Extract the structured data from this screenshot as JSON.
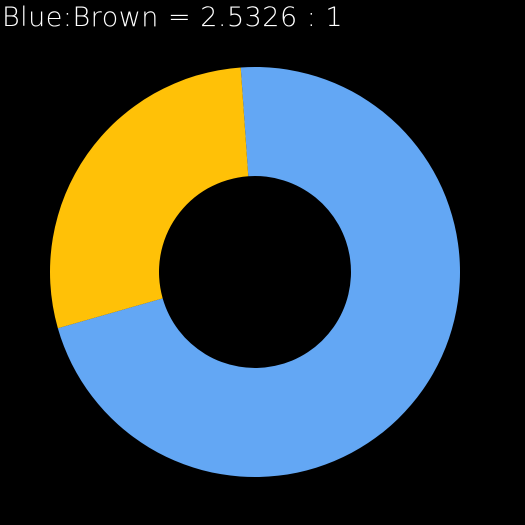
{
  "ratio_text": "Blue:Brown = 2.5326 : 1",
  "colors": {
    "background": "#000000",
    "blue": "#63A7F4",
    "brown": "#FFC107",
    "text": "#FFFFFF"
  },
  "chart_data": {
    "type": "pie",
    "style": "donut",
    "title": "",
    "slices": [
      {
        "label": "Blue",
        "value": 2.5326,
        "color": "#63A7F4"
      },
      {
        "label": "Brown",
        "value": 1,
        "color": "#FFC107"
      }
    ]
  }
}
